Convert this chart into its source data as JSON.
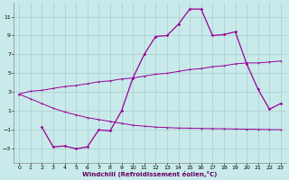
{
  "background_color": "#c8eaea",
  "grid_color": "#aacccc",
  "line_color": "#990099",
  "x_label": "Windchill (Refroidissement éolien,°C)",
  "xlim": [
    -0.5,
    23.5
  ],
  "ylim": [
    -4.5,
    12.5
  ],
  "xticks": [
    0,
    1,
    2,
    3,
    4,
    5,
    6,
    7,
    8,
    9,
    10,
    11,
    12,
    13,
    14,
    15,
    16,
    17,
    18,
    19,
    20,
    21,
    22,
    23
  ],
  "yticks": [
    -3,
    -1,
    1,
    3,
    5,
    7,
    9,
    11
  ],
  "upper_x": [
    0,
    1,
    2,
    3,
    4,
    5,
    6,
    7,
    8,
    9,
    10,
    11,
    12,
    13,
    14,
    15,
    16,
    17,
    18,
    19,
    20,
    21,
    22,
    23
  ],
  "upper_y": [
    2.8,
    3.1,
    3.2,
    3.4,
    3.6,
    3.7,
    3.9,
    4.1,
    4.2,
    4.4,
    4.5,
    4.7,
    4.9,
    5.0,
    5.2,
    5.4,
    5.5,
    5.7,
    5.8,
    6.0,
    6.1,
    6.1,
    6.2,
    6.3
  ],
  "lower_x": [
    0,
    1,
    2,
    3,
    4,
    5,
    6,
    7,
    8,
    9,
    10,
    11,
    12,
    13,
    14,
    15,
    16,
    17,
    18,
    19,
    20,
    21,
    22,
    23
  ],
  "lower_y": [
    2.8,
    2.3,
    1.8,
    1.3,
    0.9,
    0.6,
    0.3,
    0.1,
    -0.1,
    -0.3,
    -0.5,
    -0.6,
    -0.7,
    -0.75,
    -0.8,
    -0.82,
    -0.84,
    -0.86,
    -0.88,
    -0.9,
    -0.92,
    -0.94,
    -0.96,
    -0.98
  ],
  "main_x": [
    2,
    3,
    4,
    5,
    6,
    7,
    8,
    9,
    10,
    11,
    12,
    13,
    14,
    15,
    16,
    17,
    18,
    19,
    20,
    21,
    22,
    23
  ],
  "main_y": [
    -0.7,
    -2.8,
    -2.7,
    -3.0,
    -2.8,
    -1.0,
    -1.1,
    1.0,
    4.5,
    7.0,
    8.9,
    9.0,
    10.2,
    11.8,
    11.8,
    9.0,
    9.1,
    9.4,
    6.0,
    3.3,
    1.2,
    1.8
  ]
}
